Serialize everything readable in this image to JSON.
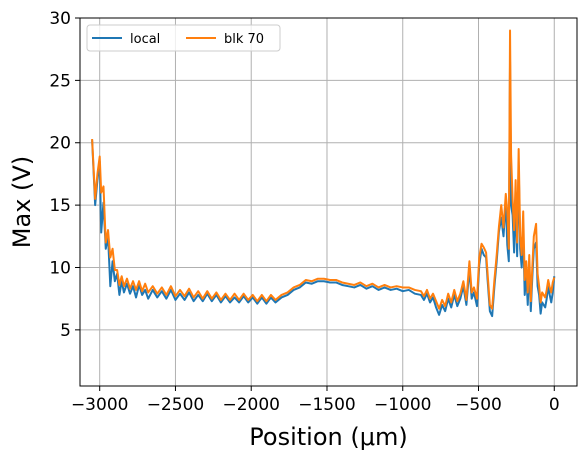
{
  "chart_data": {
    "type": "line",
    "xlabel": "Position (μm)",
    "ylabel": "Max (V)",
    "xlim": [
      -3130,
      150
    ],
    "ylim": [
      0.5,
      30
    ],
    "xticks": [
      -3000,
      -2500,
      -2000,
      -1500,
      -1000,
      -500,
      0
    ],
    "xtick_labels": [
      "−3000",
      "−2500",
      "−2000",
      "−1500",
      "−1000",
      "−500",
      "0"
    ],
    "yticks": [
      5,
      10,
      15,
      20,
      25,
      30
    ],
    "ytick_labels": [
      "5",
      "10",
      "15",
      "20",
      "25",
      "30"
    ],
    "grid": true,
    "legend_position": "top-left",
    "series": [
      {
        "name": "local",
        "color": "#1f77b4",
        "points": [
          [
            -3050,
            20.2
          ],
          [
            -3030,
            15.0
          ],
          [
            -3015,
            17.0
          ],
          [
            -3000,
            18.5
          ],
          [
            -2990,
            12.8
          ],
          [
            -2975,
            15.2
          ],
          [
            -2960,
            11.5
          ],
          [
            -2945,
            12.5
          ],
          [
            -2930,
            8.5
          ],
          [
            -2915,
            10.5
          ],
          [
            -2900,
            8.9
          ],
          [
            -2885,
            9.5
          ],
          [
            -2870,
            7.8
          ],
          [
            -2855,
            8.9
          ],
          [
            -2840,
            8.0
          ],
          [
            -2820,
            8.7
          ],
          [
            -2800,
            7.9
          ],
          [
            -2780,
            8.5
          ],
          [
            -2760,
            7.6
          ],
          [
            -2740,
            8.6
          ],
          [
            -2720,
            7.8
          ],
          [
            -2700,
            8.2
          ],
          [
            -2680,
            7.5
          ],
          [
            -2650,
            8.2
          ],
          [
            -2620,
            7.6
          ],
          [
            -2590,
            8.1
          ],
          [
            -2560,
            7.5
          ],
          [
            -2530,
            8.2
          ],
          [
            -2500,
            7.4
          ],
          [
            -2470,
            7.9
          ],
          [
            -2440,
            7.4
          ],
          [
            -2410,
            8.0
          ],
          [
            -2380,
            7.3
          ],
          [
            -2350,
            7.8
          ],
          [
            -2320,
            7.3
          ],
          [
            -2290,
            7.9
          ],
          [
            -2260,
            7.3
          ],
          [
            -2230,
            7.8
          ],
          [
            -2200,
            7.2
          ],
          [
            -2170,
            7.7
          ],
          [
            -2140,
            7.2
          ],
          [
            -2110,
            7.6
          ],
          [
            -2080,
            7.2
          ],
          [
            -2050,
            7.7
          ],
          [
            -2020,
            7.2
          ],
          [
            -1990,
            7.6
          ],
          [
            -1960,
            7.1
          ],
          [
            -1930,
            7.6
          ],
          [
            -1900,
            7.1
          ],
          [
            -1870,
            7.6
          ],
          [
            -1840,
            7.2
          ],
          [
            -1800,
            7.6
          ],
          [
            -1760,
            7.8
          ],
          [
            -1720,
            8.2
          ],
          [
            -1680,
            8.4
          ],
          [
            -1640,
            8.8
          ],
          [
            -1600,
            8.7
          ],
          [
            -1560,
            8.9
          ],
          [
            -1520,
            8.9
          ],
          [
            -1480,
            8.8
          ],
          [
            -1440,
            8.8
          ],
          [
            -1400,
            8.6
          ],
          [
            -1360,
            8.5
          ],
          [
            -1320,
            8.4
          ],
          [
            -1280,
            8.6
          ],
          [
            -1240,
            8.3
          ],
          [
            -1200,
            8.5
          ],
          [
            -1160,
            8.2
          ],
          [
            -1120,
            8.4
          ],
          [
            -1080,
            8.2
          ],
          [
            -1040,
            8.3
          ],
          [
            -1000,
            8.1
          ],
          [
            -960,
            8.2
          ],
          [
            -920,
            7.9
          ],
          [
            -880,
            7.8
          ],
          [
            -860,
            7.4
          ],
          [
            -840,
            7.9
          ],
          [
            -820,
            7.2
          ],
          [
            -800,
            7.6
          ],
          [
            -780,
            6.8
          ],
          [
            -760,
            6.2
          ],
          [
            -740,
            7.0
          ],
          [
            -720,
            6.5
          ],
          [
            -700,
            7.5
          ],
          [
            -680,
            6.8
          ],
          [
            -660,
            7.8
          ],
          [
            -640,
            6.9
          ],
          [
            -620,
            7.5
          ],
          [
            -600,
            8.5
          ],
          [
            -580,
            7.0
          ],
          [
            -560,
            9.9
          ],
          [
            -545,
            7.5
          ],
          [
            -530,
            8.0
          ],
          [
            -510,
            6.9
          ],
          [
            -495,
            10.2
          ],
          [
            -480,
            11.5
          ],
          [
            -465,
            11.0
          ],
          [
            -450,
            10.8
          ],
          [
            -440,
            9.0
          ],
          [
            -425,
            6.5
          ],
          [
            -410,
            6.1
          ],
          [
            -395,
            8.5
          ],
          [
            -380,
            10.5
          ],
          [
            -365,
            12.9
          ],
          [
            -350,
            14.0
          ],
          [
            -335,
            12.5
          ],
          [
            -320,
            15.4
          ],
          [
            -310,
            11.8
          ],
          [
            -300,
            10.5
          ],
          [
            -292,
            26.5
          ],
          [
            -285,
            15.0
          ],
          [
            -275,
            14.2
          ],
          [
            -265,
            11.2
          ],
          [
            -255,
            15.5
          ],
          [
            -245,
            10.9
          ],
          [
            -235,
            18.2
          ],
          [
            -225,
            11.5
          ],
          [
            -215,
            10.0
          ],
          [
            -205,
            12.8
          ],
          [
            -195,
            7.8
          ],
          [
            -185,
            9.5
          ],
          [
            -175,
            7.0
          ],
          [
            -165,
            10.2
          ],
          [
            -155,
            6.5
          ],
          [
            -145,
            9.2
          ],
          [
            -135,
            11.5
          ],
          [
            -120,
            12.0
          ],
          [
            -110,
            8.5
          ],
          [
            -100,
            7.8
          ],
          [
            -90,
            6.3
          ],
          [
            -80,
            7.2
          ],
          [
            -70,
            7.0
          ],
          [
            -60,
            6.8
          ],
          [
            -50,
            7.5
          ],
          [
            -40,
            8.5
          ],
          [
            -30,
            7.8
          ],
          [
            -20,
            7.2
          ],
          [
            -10,
            8.0
          ],
          [
            0,
            9.3
          ]
        ]
      },
      {
        "name": "blk 70",
        "color": "#ff7f0e",
        "points": [
          [
            -3050,
            20.3
          ],
          [
            -3030,
            15.5
          ],
          [
            -3015,
            17.5
          ],
          [
            -3000,
            18.9
          ],
          [
            -2990,
            16.0
          ],
          [
            -2975,
            16.5
          ],
          [
            -2960,
            12.0
          ],
          [
            -2945,
            13.0
          ],
          [
            -2930,
            10.8
          ],
          [
            -2915,
            11.5
          ],
          [
            -2900,
            9.8
          ],
          [
            -2885,
            9.8
          ],
          [
            -2870,
            8.6
          ],
          [
            -2855,
            9.3
          ],
          [
            -2840,
            8.5
          ],
          [
            -2820,
            9.1
          ],
          [
            -2800,
            8.3
          ],
          [
            -2780,
            8.9
          ],
          [
            -2760,
            8.2
          ],
          [
            -2740,
            8.9
          ],
          [
            -2720,
            8.1
          ],
          [
            -2700,
            8.7
          ],
          [
            -2680,
            8.0
          ],
          [
            -2650,
            8.5
          ],
          [
            -2620,
            7.9
          ],
          [
            -2590,
            8.4
          ],
          [
            -2560,
            7.8
          ],
          [
            -2530,
            8.5
          ],
          [
            -2500,
            7.7
          ],
          [
            -2470,
            8.2
          ],
          [
            -2440,
            7.7
          ],
          [
            -2410,
            8.3
          ],
          [
            -2380,
            7.6
          ],
          [
            -2350,
            8.1
          ],
          [
            -2320,
            7.5
          ],
          [
            -2290,
            8.1
          ],
          [
            -2260,
            7.5
          ],
          [
            -2230,
            8.0
          ],
          [
            -2200,
            7.4
          ],
          [
            -2170,
            7.9
          ],
          [
            -2140,
            7.4
          ],
          [
            -2110,
            7.9
          ],
          [
            -2080,
            7.4
          ],
          [
            -2050,
            7.9
          ],
          [
            -2020,
            7.4
          ],
          [
            -1990,
            7.8
          ],
          [
            -1960,
            7.3
          ],
          [
            -1930,
            7.8
          ],
          [
            -1900,
            7.3
          ],
          [
            -1870,
            7.8
          ],
          [
            -1840,
            7.4
          ],
          [
            -1800,
            7.8
          ],
          [
            -1760,
            8.0
          ],
          [
            -1720,
            8.4
          ],
          [
            -1680,
            8.6
          ],
          [
            -1640,
            9.0
          ],
          [
            -1600,
            8.9
          ],
          [
            -1560,
            9.1
          ],
          [
            -1520,
            9.1
          ],
          [
            -1480,
            9.0
          ],
          [
            -1440,
            9.0
          ],
          [
            -1400,
            8.8
          ],
          [
            -1360,
            8.7
          ],
          [
            -1320,
            8.6
          ],
          [
            -1280,
            8.8
          ],
          [
            -1240,
            8.5
          ],
          [
            -1200,
            8.7
          ],
          [
            -1160,
            8.4
          ],
          [
            -1120,
            8.6
          ],
          [
            -1080,
            8.4
          ],
          [
            -1040,
            8.5
          ],
          [
            -1000,
            8.4
          ],
          [
            -960,
            8.4
          ],
          [
            -920,
            8.2
          ],
          [
            -880,
            8.1
          ],
          [
            -860,
            7.7
          ],
          [
            -840,
            8.2
          ],
          [
            -820,
            7.5
          ],
          [
            -800,
            7.9
          ],
          [
            -780,
            7.3
          ],
          [
            -760,
            6.7
          ],
          [
            -740,
            7.4
          ],
          [
            -720,
            6.9
          ],
          [
            -700,
            7.9
          ],
          [
            -680,
            7.2
          ],
          [
            -660,
            8.2
          ],
          [
            -640,
            7.3
          ],
          [
            -620,
            7.9
          ],
          [
            -600,
            8.9
          ],
          [
            -580,
            7.4
          ],
          [
            -560,
            10.5
          ],
          [
            -545,
            8.0
          ],
          [
            -530,
            8.4
          ],
          [
            -510,
            7.5
          ],
          [
            -495,
            10.8
          ],
          [
            -480,
            11.9
          ],
          [
            -465,
            11.6
          ],
          [
            -450,
            11.2
          ],
          [
            -440,
            9.5
          ],
          [
            -425,
            7.0
          ],
          [
            -410,
            6.7
          ],
          [
            -395,
            9.0
          ],
          [
            -380,
            11.0
          ],
          [
            -365,
            13.3
          ],
          [
            -350,
            15.0
          ],
          [
            -335,
            13.2
          ],
          [
            -320,
            15.9
          ],
          [
            -310,
            14.5
          ],
          [
            -300,
            11.5
          ],
          [
            -292,
            29.0
          ],
          [
            -285,
            19.0
          ],
          [
            -275,
            15.5
          ],
          [
            -265,
            13.0
          ],
          [
            -255,
            17.0
          ],
          [
            -245,
            12.0
          ],
          [
            -235,
            19.5
          ],
          [
            -225,
            12.5
          ],
          [
            -215,
            11.0
          ],
          [
            -205,
            14.5
          ],
          [
            -195,
            9.0
          ],
          [
            -185,
            10.5
          ],
          [
            -175,
            8.0
          ],
          [
            -165,
            11.0
          ],
          [
            -155,
            7.3
          ],
          [
            -145,
            10.0
          ],
          [
            -135,
            12.5
          ],
          [
            -120,
            13.5
          ],
          [
            -110,
            9.5
          ],
          [
            -100,
            8.5
          ],
          [
            -90,
            7.2
          ],
          [
            -80,
            8.0
          ],
          [
            -70,
            7.8
          ],
          [
            -60,
            7.6
          ],
          [
            -50,
            8.2
          ],
          [
            -40,
            9.0
          ],
          [
            -30,
            8.4
          ],
          [
            -20,
            8.0
          ],
          [
            -10,
            8.8
          ],
          [
            0,
            9.2
          ]
        ]
      }
    ]
  }
}
